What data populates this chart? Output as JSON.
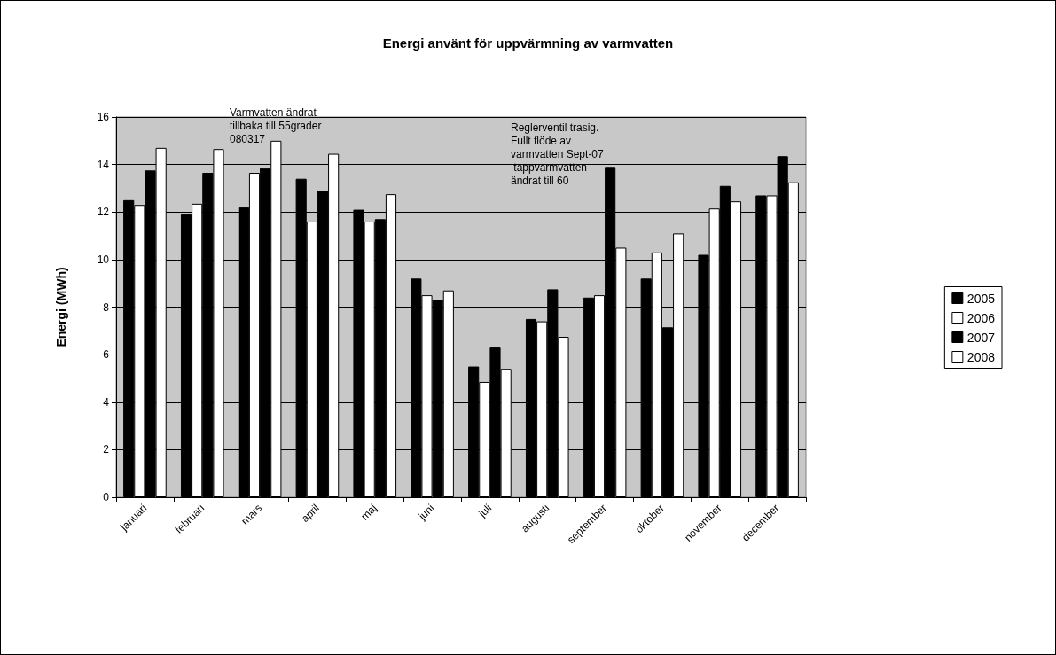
{
  "chart_data": {
    "type": "bar",
    "title": "Energi använt för uppvärmning av varmvatten",
    "ylabel": "Energi (MWh)",
    "categories": [
      "januari",
      "februari",
      "mars",
      "april",
      "maj",
      "juni",
      "juli",
      "augusti",
      "september",
      "oktober",
      "november",
      "december"
    ],
    "series": [
      {
        "name": "2005",
        "color": "#000000",
        "values": [
          12.5,
          11.9,
          12.2,
          13.4,
          12.1,
          9.2,
          5.5,
          7.5,
          8.4,
          9.2,
          10.2,
          12.7
        ]
      },
      {
        "name": "2006",
        "color": "#ffffff",
        "values": [
          12.3,
          12.35,
          13.65,
          11.6,
          11.6,
          8.5,
          4.85,
          7.4,
          8.5,
          10.3,
          12.15,
          12.7
        ]
      },
      {
        "name": "2007",
        "color": "#000000",
        "values": [
          13.75,
          13.65,
          13.85,
          12.9,
          11.7,
          8.3,
          6.3,
          8.75,
          13.9,
          7.15,
          13.1,
          14.35
        ]
      },
      {
        "name": "2008",
        "color": "#ffffff",
        "values": [
          14.7,
          14.65,
          15.0,
          14.45,
          12.75,
          8.7,
          5.4,
          6.75,
          10.5,
          11.1,
          12.45,
          13.25
        ]
      }
    ],
    "ylim": [
      0,
      16
    ],
    "yticks": [
      0,
      2,
      4,
      6,
      8,
      10,
      12,
      14,
      16
    ],
    "grid": "y",
    "legend": "right",
    "annotations": [
      "Varmvatten ändrat tillbaka till 55grader 080317",
      "Reglerventil trasig. Fullt flöde av varmvatten Sept-07 tappvarmvatten ändrat till 60"
    ]
  }
}
